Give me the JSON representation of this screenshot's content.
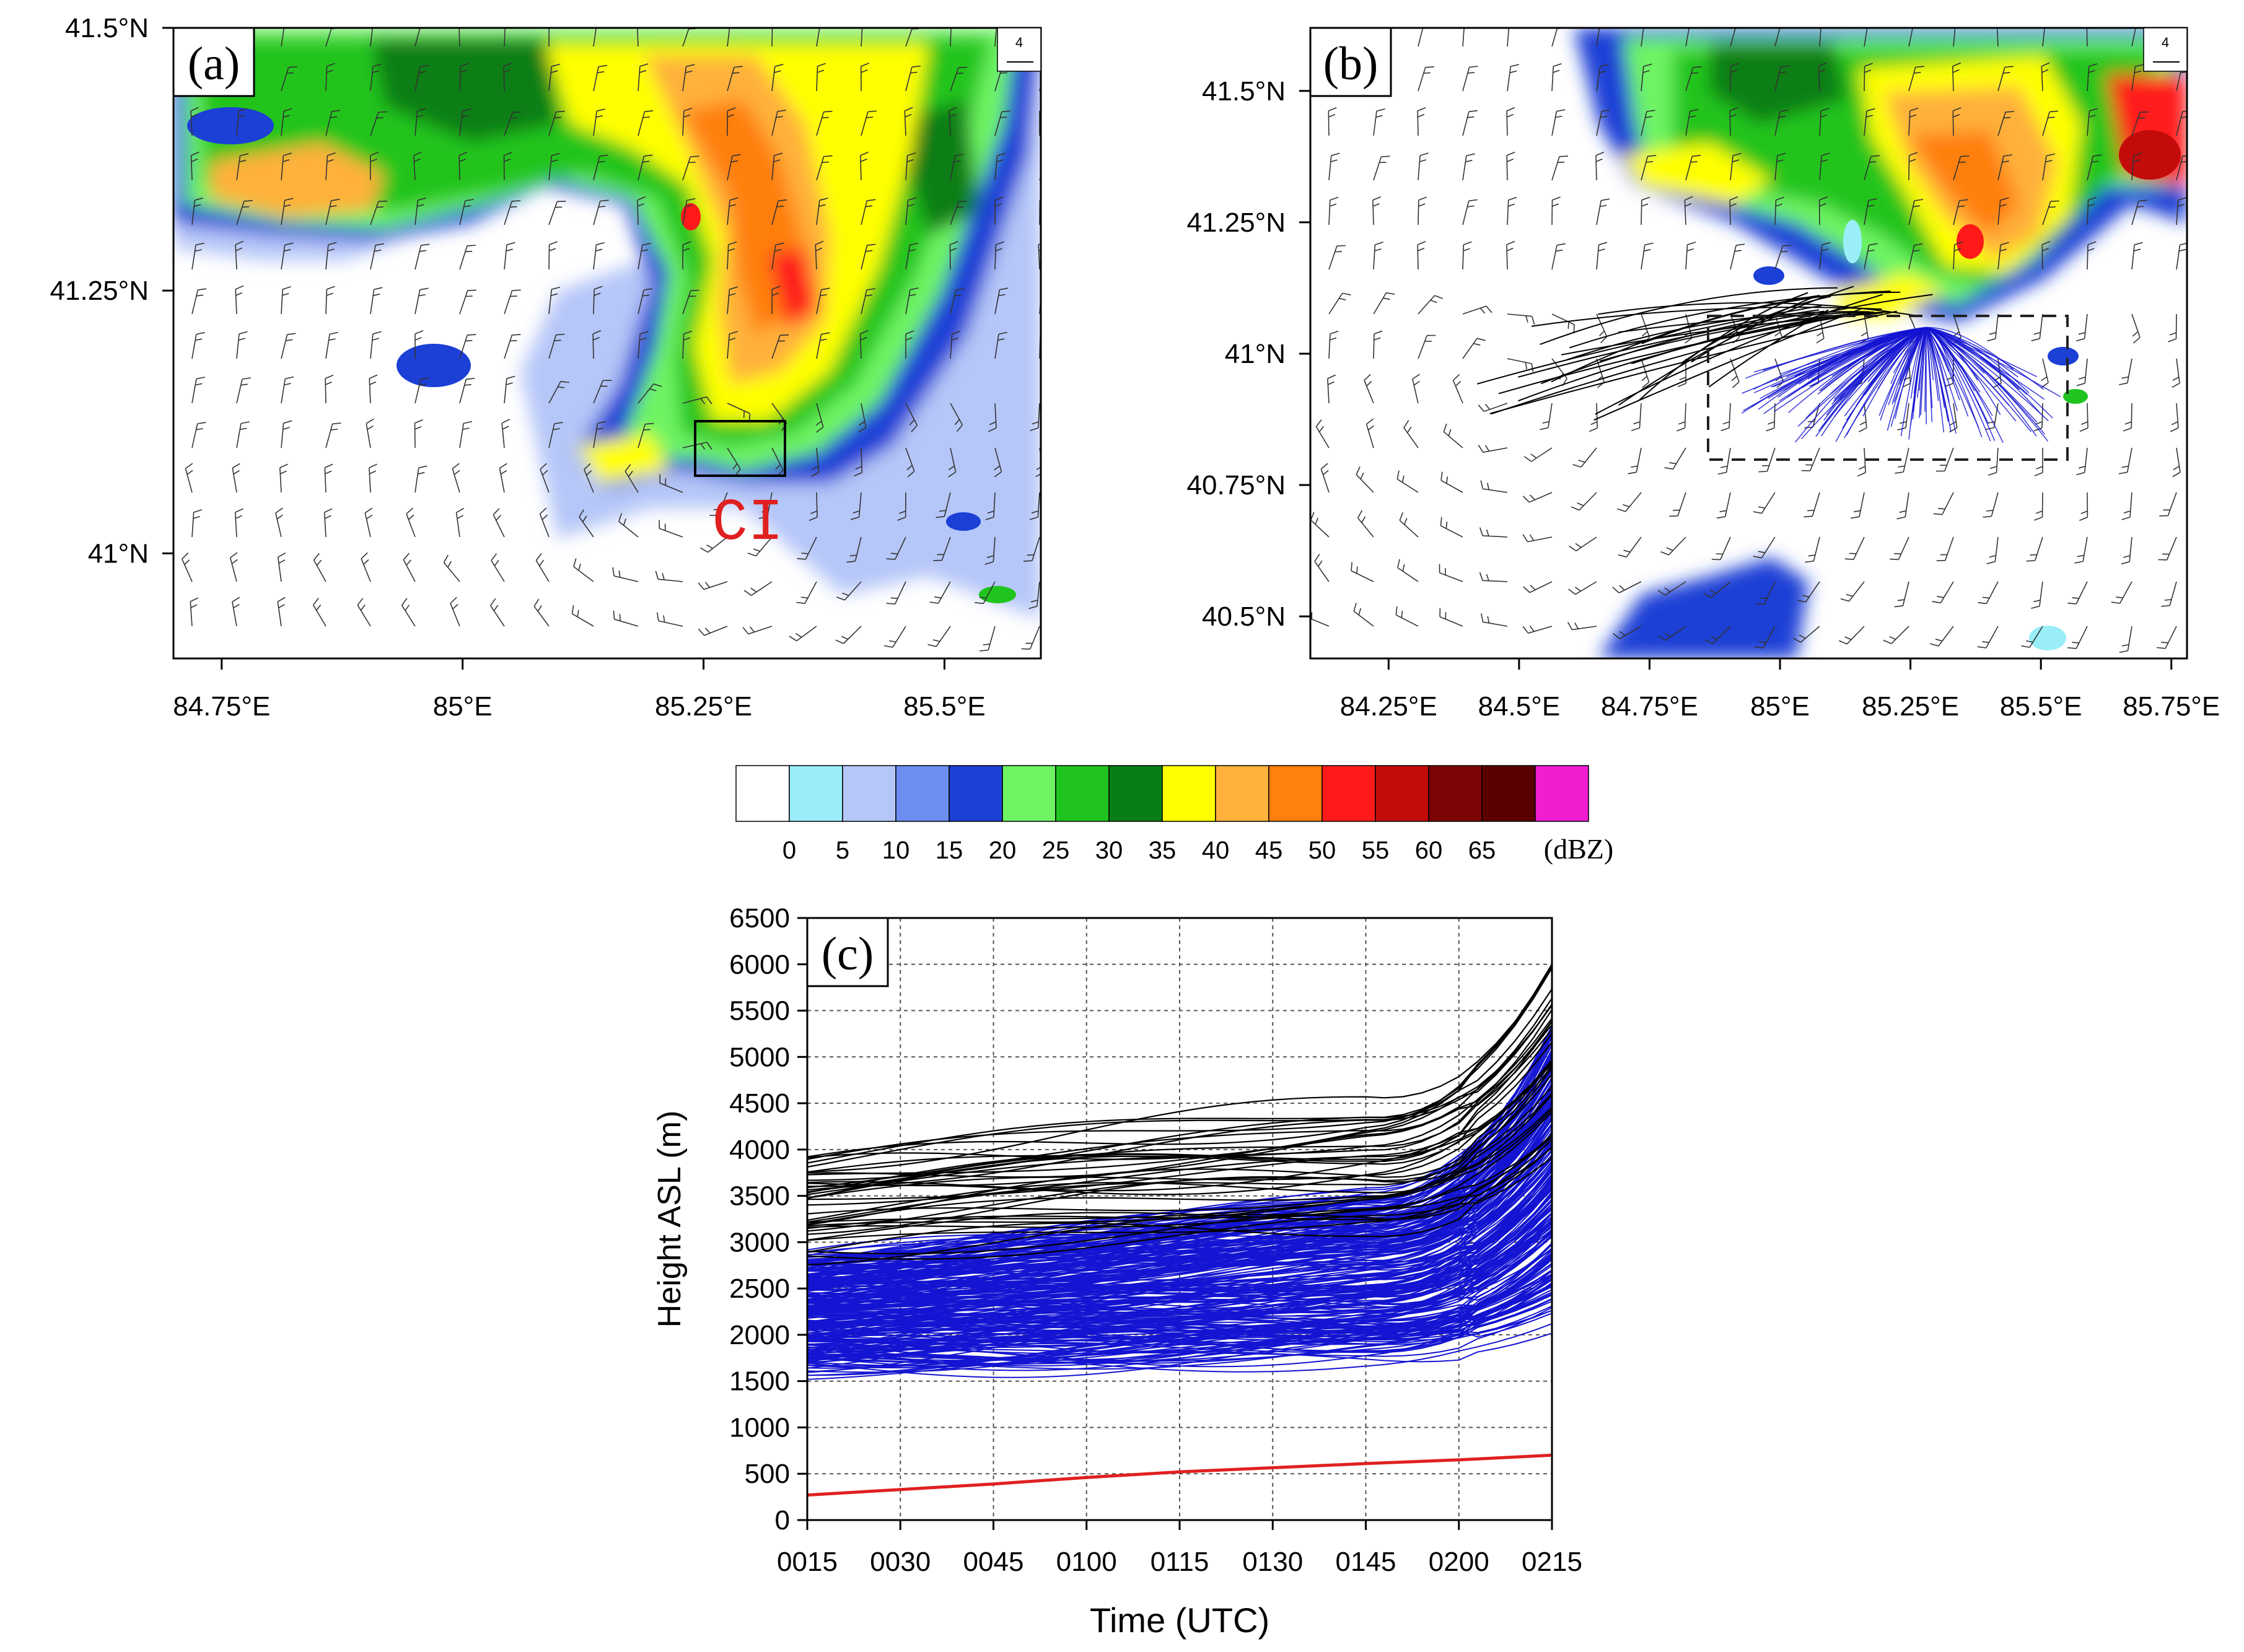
{
  "chart_data": [
    {
      "type": "heatmap",
      "panel_label": "(a)",
      "x_ticks": [
        "84.75°E",
        "85°E",
        "85.25°E",
        "85.5°E"
      ],
      "y_ticks": [
        "41.5°N",
        "41.25°N",
        "41°N"
      ],
      "xlim": [
        84.7,
        85.6
      ],
      "ylim": [
        40.9,
        41.5
      ],
      "annotation": "CI",
      "wind_key_label": "4"
    },
    {
      "type": "heatmap",
      "panel_label": "(b)",
      "x_ticks": [
        "84.25°E",
        "84.5°E",
        "84.75°E",
        "85°E",
        "85.25°E",
        "85.5°E",
        "85.75°E"
      ],
      "y_ticks": [
        "41.5°N",
        "41.25°N",
        "41°N",
        "40.75°N",
        "40.5°N"
      ],
      "xlim": [
        84.1,
        85.78
      ],
      "ylim": [
        40.42,
        41.62
      ],
      "wind_key_label": "4",
      "dashed_box": {
        "lon": [
          84.87,
          85.55
        ],
        "lat": [
          40.8,
          41.07
        ]
      }
    },
    {
      "type": "colorbar",
      "ticks": [
        "0",
        "5",
        "10",
        "15",
        "20",
        "25",
        "30",
        "35",
        "40",
        "45",
        "50",
        "55",
        "60",
        "65"
      ],
      "unit": "(dBZ)",
      "colors": [
        "#ffffff",
        "#9aeef8",
        "#b5c6f8",
        "#6b8ef0",
        "#1c3fd6",
        "#6ef463",
        "#20c41e",
        "#0a7e16",
        "#ffff00",
        "#ffb13b",
        "#ff7f0f",
        "#ff1a1a",
        "#c30b0b",
        "#7c0404",
        "#5a0000",
        "#f21cd1"
      ]
    },
    {
      "type": "line",
      "panel_label": "(c)",
      "x_ticks": [
        "0015",
        "0030",
        "0045",
        "0100",
        "0115",
        "0130",
        "0145",
        "0200",
        "0215"
      ],
      "y_ticks": [
        "0",
        "500",
        "1000",
        "1500",
        "2000",
        "2500",
        "3000",
        "3500",
        "4000",
        "4500",
        "5000",
        "5500",
        "6000",
        "6500"
      ],
      "xlabel": "Time (UTC)",
      "ylabel": "Height ASL (m)",
      "ylim": [
        0,
        6500
      ],
      "grid": true,
      "series": [
        {
          "color": "#1414d2",
          "count": 260,
          "start_min": 1650,
          "start_max": 2850,
          "end_min": 2300,
          "end_max": 5300
        },
        {
          "color": "#000000",
          "count": 40,
          "start_min": 2900,
          "start_max": 3900,
          "end_min": 4000,
          "end_max": 6000
        },
        {
          "color": "#e02020",
          "values": [
            270,
            330,
            390,
            460,
            520,
            565,
            610,
            650,
            700
          ]
        }
      ]
    }
  ],
  "colors": {
    "ci_label": "#e02020",
    "trajectory_blue": "#1414d2",
    "trajectory_black": "#000000",
    "terrain_line": "#e02020"
  }
}
